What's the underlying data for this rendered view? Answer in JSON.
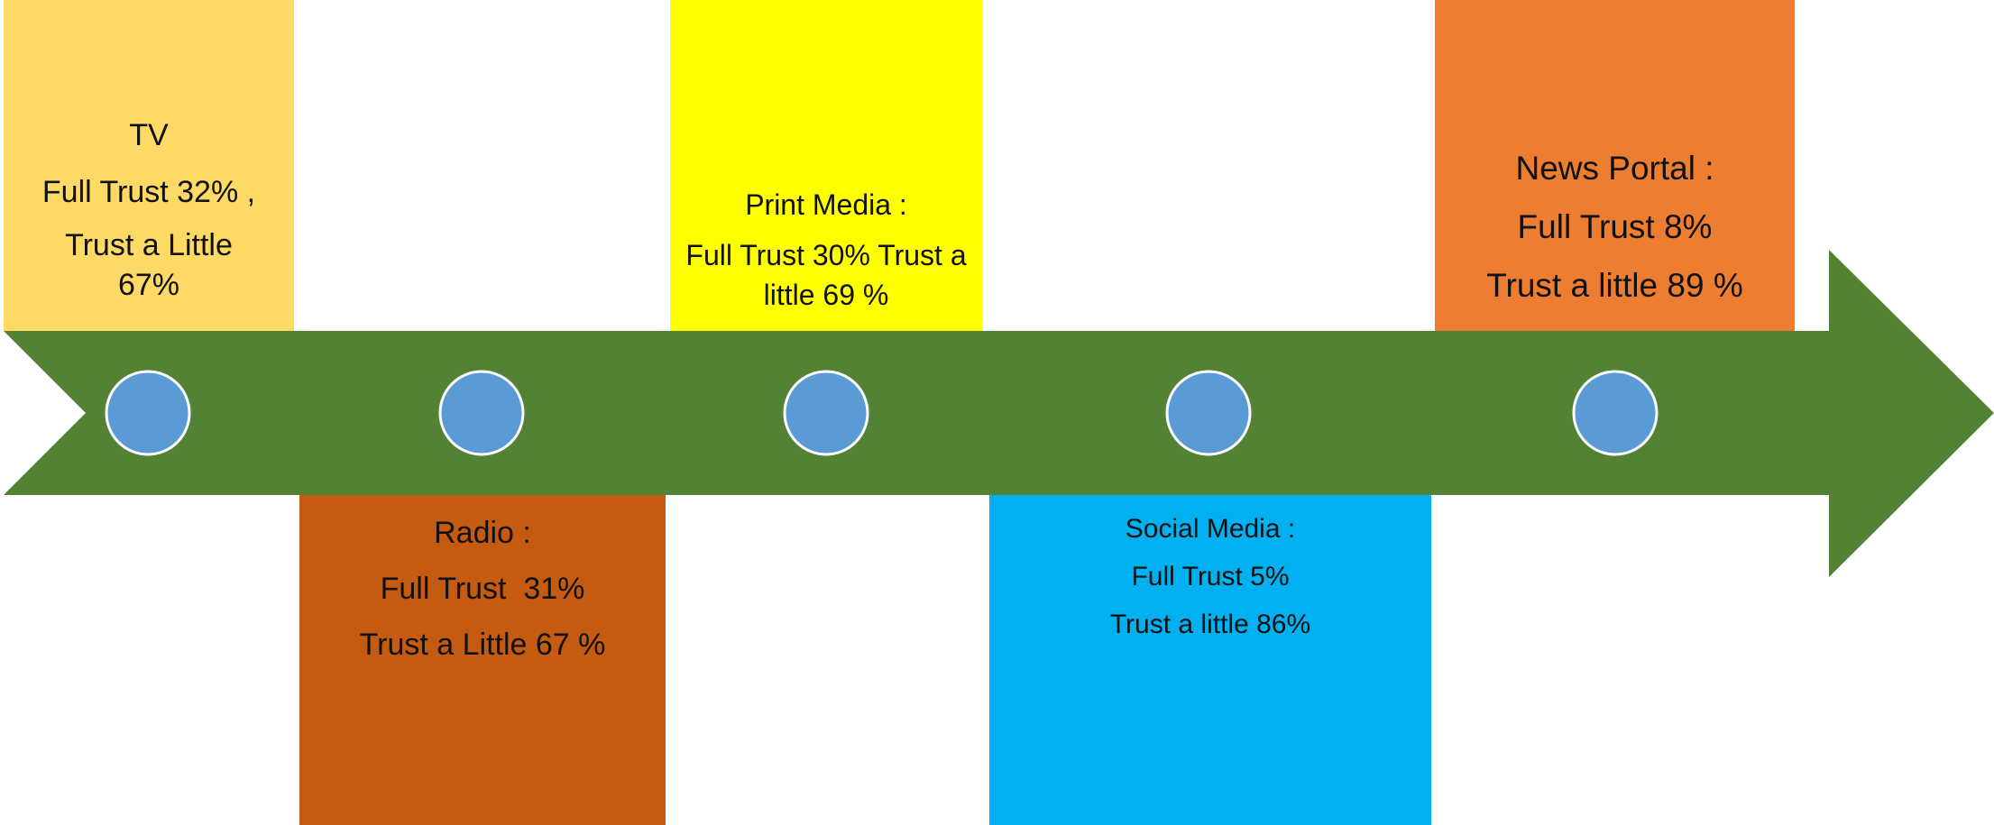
{
  "colors": {
    "arrow": "#548235",
    "dot": "#5b9bd5",
    "dot_stroke": "#ffffff",
    "text": "#111111"
  },
  "items": [
    {
      "id": "tv",
      "color": "#fdd966",
      "lines": [
        "TV",
        "Full Trust 32% ,",
        "Trust a Little 67%"
      ]
    },
    {
      "id": "radio",
      "color": "#c55a11",
      "lines": [
        "Radio :",
        "Full Trust  31%",
        "Trust a Little 67 %"
      ]
    },
    {
      "id": "print",
      "color": "#ffff00",
      "lines": [
        "Print Media :",
        "Full Trust 30% Trust a little 69 %"
      ]
    },
    {
      "id": "social",
      "color": "#00b0f0",
      "lines": [
        "Social Media :",
        "Full Trust 5%",
        "Trust a little 86%"
      ]
    },
    {
      "id": "news",
      "color": "#ed7d31",
      "lines": [
        "News Portal :",
        "Full Trust 8%",
        "Trust a little 89 %"
      ]
    }
  ]
}
